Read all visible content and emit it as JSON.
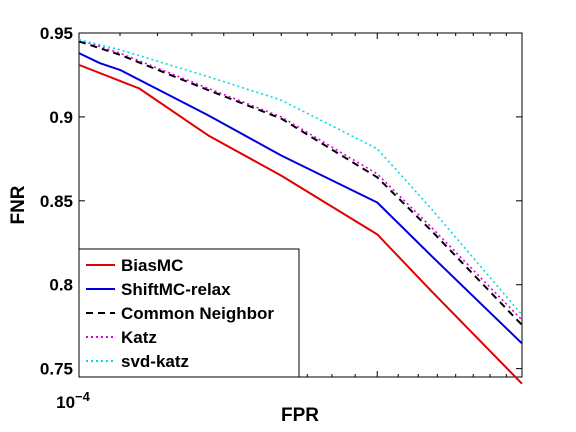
{
  "chart_data": {
    "type": "line",
    "xlabel": "FPR",
    "ylabel": "FNR",
    "xscale": "log",
    "xlim": [
      0.0001,
      0.00028
    ],
    "ylim": [
      0.745,
      0.95
    ],
    "x_tick_labels": [
      {
        "base": "10",
        "exp": "−4"
      }
    ],
    "y_ticks": [
      "0.75",
      "0.8",
      "0.85",
      "0.9",
      "0.95"
    ],
    "y_tick_values": [
      0.75,
      0.8,
      0.85,
      0.9,
      0.95
    ],
    "legend_position": "bottom-left",
    "grid": false,
    "series": [
      {
        "name": "BiasMC",
        "color": "#e30000",
        "dash": "solid",
        "x": [
          0.0001,
          0.000115,
          0.000135,
          0.00016,
          0.0002,
          0.000227,
          0.00028
        ],
        "y": [
          0.931,
          0.917,
          0.889,
          0.865,
          0.83,
          0.796,
          0.741
        ]
      },
      {
        "name": "ShiftMC-relax",
        "color": "#0000dd",
        "dash": "solid",
        "x": [
          0.0001,
          0.000105,
          0.00011,
          0.000135,
          0.00016,
          0.0002,
          0.000227,
          0.00028
        ],
        "y": [
          0.938,
          0.932,
          0.928,
          0.901,
          0.877,
          0.849,
          0.817,
          0.765
        ]
      },
      {
        "name": "Common Neighbor",
        "color": "#000000",
        "dash": "dash",
        "x": [
          0.0001,
          0.00011,
          0.000135,
          0.00016,
          0.0002,
          0.000227,
          0.00028
        ],
        "y": [
          0.945,
          0.937,
          0.916,
          0.899,
          0.864,
          0.832,
          0.776
        ]
      },
      {
        "name": "Katz",
        "color": "#dd00dd",
        "dash": "dot",
        "x": [
          0.0001,
          0.00011,
          0.000135,
          0.00016,
          0.0002,
          0.000227,
          0.00028
        ],
        "y": [
          0.946,
          0.938,
          0.917,
          0.9,
          0.866,
          0.834,
          0.779
        ]
      },
      {
        "name": "svd-katz",
        "color": "#00dddd",
        "dash": "dot",
        "x": [
          0.0001,
          0.00011,
          0.000135,
          0.00016,
          0.0002,
          0.000227,
          0.00028
        ],
        "y": [
          0.946,
          0.94,
          0.924,
          0.91,
          0.881,
          0.845,
          0.782
        ]
      }
    ]
  }
}
